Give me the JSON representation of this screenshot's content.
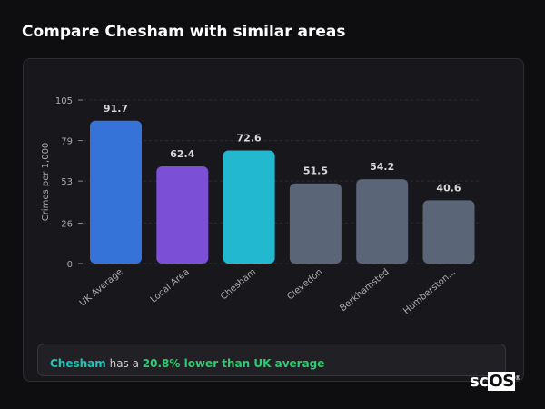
{
  "page_title": "Compare Chesham with similar areas",
  "chart_data": {
    "type": "bar",
    "title": "",
    "xlabel": "",
    "ylabel": "Crimes per 1,000",
    "ylim": [
      0,
      105
    ],
    "yticks": [
      0,
      26,
      53,
      79,
      105
    ],
    "grid": true,
    "categories": [
      "UK Average",
      "Local Area",
      "Chesham",
      "Clevedon",
      "Berkhamsted",
      "Humberston..."
    ],
    "values": [
      91.7,
      62.4,
      72.6,
      51.5,
      54.2,
      40.6
    ],
    "data_labels": [
      "91.7",
      "62.4",
      "72.6",
      "51.5",
      "54.2",
      "40.6"
    ],
    "colors": [
      "#3673d9",
      "#7b4fd6",
      "#22b8cf",
      "#5a6578",
      "#5a6578",
      "#5a6578"
    ]
  },
  "summary": {
    "area": "Chesham",
    "text": " has a ",
    "comparison": "20.8% lower than UK average"
  },
  "logo": {
    "text_a": "sc",
    "text_b": "OS",
    "mark": "®"
  }
}
